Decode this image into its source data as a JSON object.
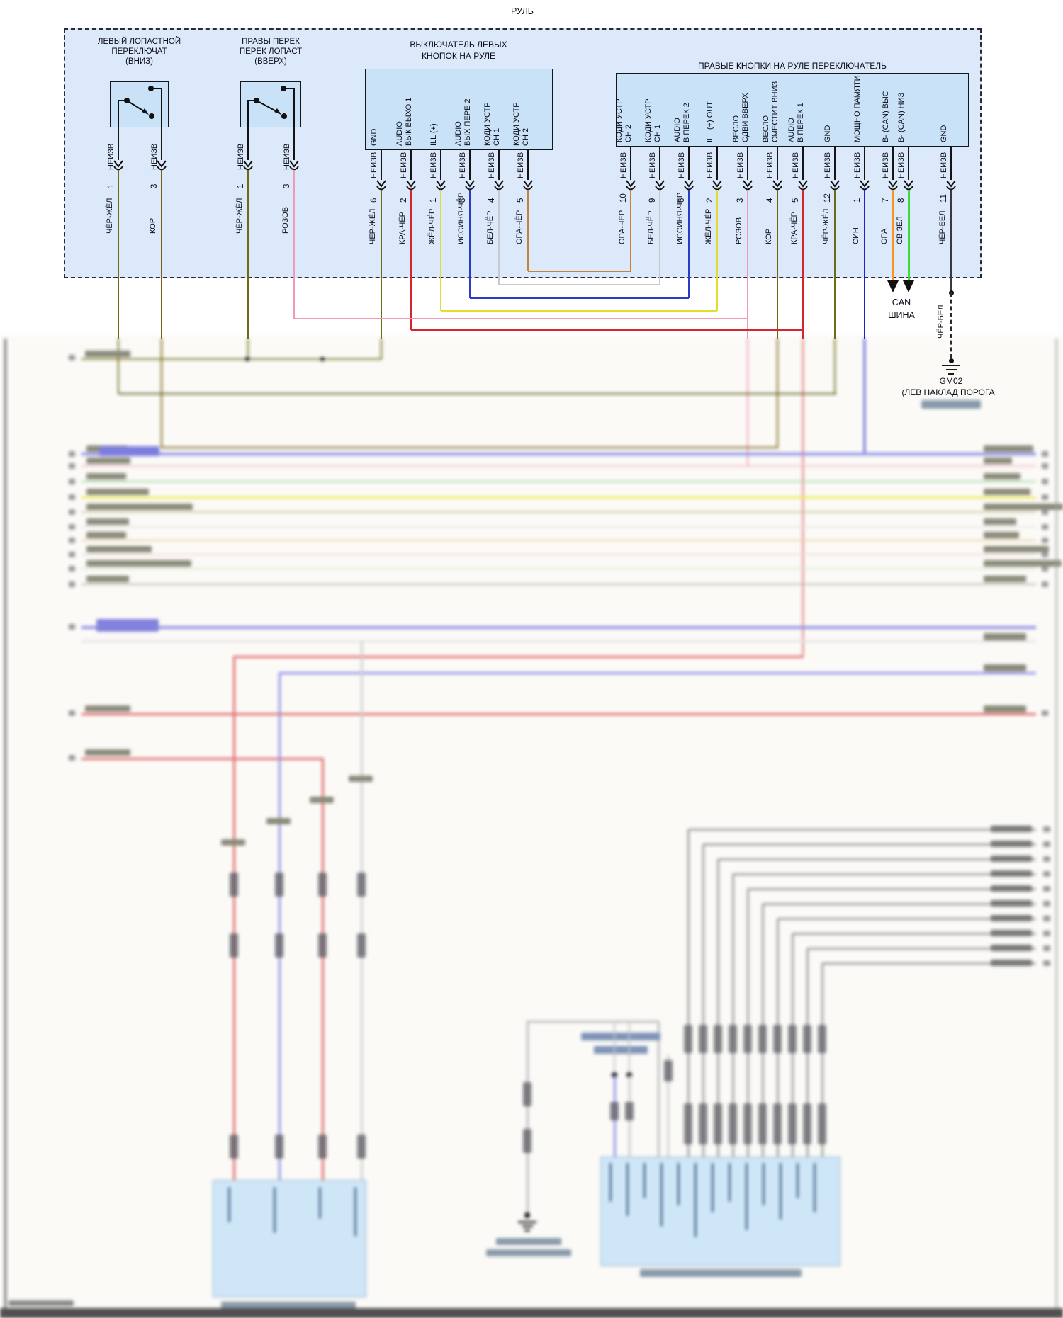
{
  "diagram": {
    "page_title": "РУЛЬ",
    "status_label": "НЕИЗВ",
    "can_bus": {
      "line1": "CAN",
      "line2": "ШИНА"
    },
    "ground_point": {
      "id": "GM02",
      "location_line": "(ЛЕВ НАКЛАД ПОРОГА",
      "wire_color_name": "ЧЁР-БЕЛ"
    },
    "switches": [
      {
        "title_lines": [
          "ЛЕВЫЙ ЛОПАСТНОЙ",
          "ПЕРЕКЛЮЧАТ",
          "(ВНИЗ)"
        ],
        "pins": [
          {
            "num": "1",
            "status": "НЕИЗВ",
            "color_name": "ЧЁР-ЖЁЛ"
          },
          {
            "num": "3",
            "status": "НЕИЗВ",
            "color_name": "КОР"
          }
        ]
      },
      {
        "title_lines": [
          "ПРАВЫ ПЕРЕК",
          "ПЕРЕК ЛОПАСТ",
          "(ВВЕРХ)"
        ],
        "pins": [
          {
            "num": "1",
            "status": "НЕИЗВ",
            "color_name": "ЧЁР-ЖЁЛ"
          },
          {
            "num": "3",
            "status": "НЕИЗВ",
            "color_name": "РОЗОВ"
          }
        ]
      }
    ],
    "connectors": [
      {
        "title_lines": [
          "ВЫКЛЮЧАТЕЛЬ ЛЕВЫХ",
          "КНОПОК НА РУЛЕ"
        ],
        "pins": [
          {
            "func_lines": [
              "GND"
            ],
            "num": "6",
            "status": "НЕИЗВ",
            "color_name": "ЧЕР-ЖЁЛ"
          },
          {
            "func_lines": [
              "AUDIO",
              "ВЫК ВЫХО 1"
            ],
            "num": "2",
            "status": "НЕИЗВ",
            "color_name": "КРА-ЧЁР"
          },
          {
            "func_lines": [
              "ILL (+)"
            ],
            "num": "1",
            "status": "НЕИЗВ",
            "color_name": "ЖЁЛ-ЧЁР"
          },
          {
            "func_lines": [
              "AUDIO",
              "ВЫХ ПЕРЕ 2"
            ],
            "num": "3",
            "status": "НЕИЗВ",
            "color_name": "ИССИНЯ-ЧЁР"
          },
          {
            "func_lines": [
              "КОДИ УСТР",
              "CH 1"
            ],
            "num": "4",
            "status": "НЕИЗВ",
            "color_name": "БЕЛ-ЧЁР"
          },
          {
            "func_lines": [
              "КОДИ УСТР",
              "CH 2"
            ],
            "num": "5",
            "status": "НЕИЗВ",
            "color_name": "ОРА-ЧЁР"
          }
        ]
      },
      {
        "title_lines": [
          "ПРАВЫЕ КНОПКИ НА РУЛЕ ПЕРЕКЛЮЧАТЕЛЬ"
        ],
        "pins": [
          {
            "func_lines": [
              "КОДИ УСТР",
              "CH 2"
            ],
            "num": "10",
            "status": "НЕИЗВ",
            "color_name": "ОРА-ЧЕР"
          },
          {
            "func_lines": [
              "КОДИ УСТР",
              "CH 1"
            ],
            "num": "9",
            "status": "НЕИЗВ",
            "color_name": "БЕЛ-ЧЁР"
          },
          {
            "func_lines": [
              "AUDIO",
              "В ПЕРЕК 2"
            ],
            "num": "6",
            "status": "НЕИЗВ",
            "color_name": "ИССИНЯ-ЧЕР"
          },
          {
            "func_lines": [
              "ILL (+) OUT"
            ],
            "num": "2",
            "status": "НЕИЗВ",
            "color_name": "ЖЁЛ-ЧЁР"
          },
          {
            "func_lines": [
              "ВЕСЛО",
              "СДВИ ВВЕРХ"
            ],
            "num": "3",
            "status": "НЕИЗВ",
            "color_name": "РОЗОВ"
          },
          {
            "func_lines": [
              "ВЕСЛО",
              "СМЕСТИТ ВНИЗ"
            ],
            "num": "4",
            "status": "НЕИЗВ",
            "color_name": "КОР"
          },
          {
            "func_lines": [
              "AUDIO",
              "В ПЕРЕК 1"
            ],
            "num": "5",
            "status": "НЕИЗВ",
            "color_name": "КРА-ЧЁР"
          },
          {
            "func_lines": [
              "GND"
            ],
            "num": "12",
            "status": "НЕИЗВ",
            "color_name": "ЧЁР-ЖЁЛ"
          },
          {
            "func_lines": [
              "МОЩНО ПАМЯТИ"
            ],
            "num": "1",
            "status": "НЕИЗВ",
            "color_name": "СИН"
          },
          {
            "func_lines": [
              "В- (CAN) ВЫС"
            ],
            "num": "7",
            "status": "НЕИЗВ",
            "color_name": "ОРА"
          },
          {
            "func_lines": [
              "В- (CAN) НИЗ"
            ],
            "num": "8",
            "status": "НЕИЗВ",
            "color_name": "СВ ЗЕЛ"
          },
          {
            "func_lines": [
              "GND"
            ],
            "num": "11",
            "status": "НЕИЗВ",
            "color_name": "ЧЁР-БЕЛ"
          }
        ]
      }
    ],
    "wire_colors": {
      "ЧЕР-ЖЕЛ": "#6f6b14",
      "КОР": "#7a5f10",
      "РОЗОВ": "#f09ab8",
      "КРА-ЧЕР": "#d2272e",
      "ЖЕЛ-ЧЕР": "#e4dc2e",
      "ИССИНЯ-ЧЕР": "#2b3bc4",
      "БЕЛ-ЧЕР": "#c9c9c9",
      "ОРА-ЧЕР": "#c8803a",
      "СИН": "#2020cf",
      "ОРА": "#f7941d",
      "СВ ЗЕЛ": "#3bdc3b",
      "ЧЕР-БЕЛ": "#3a3a3a"
    },
    "accent_colors": {
      "box_fill": "#c9e2f8",
      "boundary_fill": "#dbe9fa",
      "blur_box_fill": "#cfe6f7",
      "periwinkle_bus": "#8f8fe6",
      "red_bus": "#e06666",
      "gray_harness": "#a0a0a0",
      "yellow_bus": "#eeeb55",
      "green_bus": "#a6d8a6",
      "pink_bus": "#f2bcc8"
    },
    "blurred_band_colors": [
      "#9090e8",
      "#f2bcc8",
      "#a6d8a6",
      "#eeeb55",
      "#c9c493",
      "#e4e4e4",
      "#e9cf9f",
      "#f2d7da",
      "#d9e9cc",
      "#b8b8a2"
    ]
  }
}
